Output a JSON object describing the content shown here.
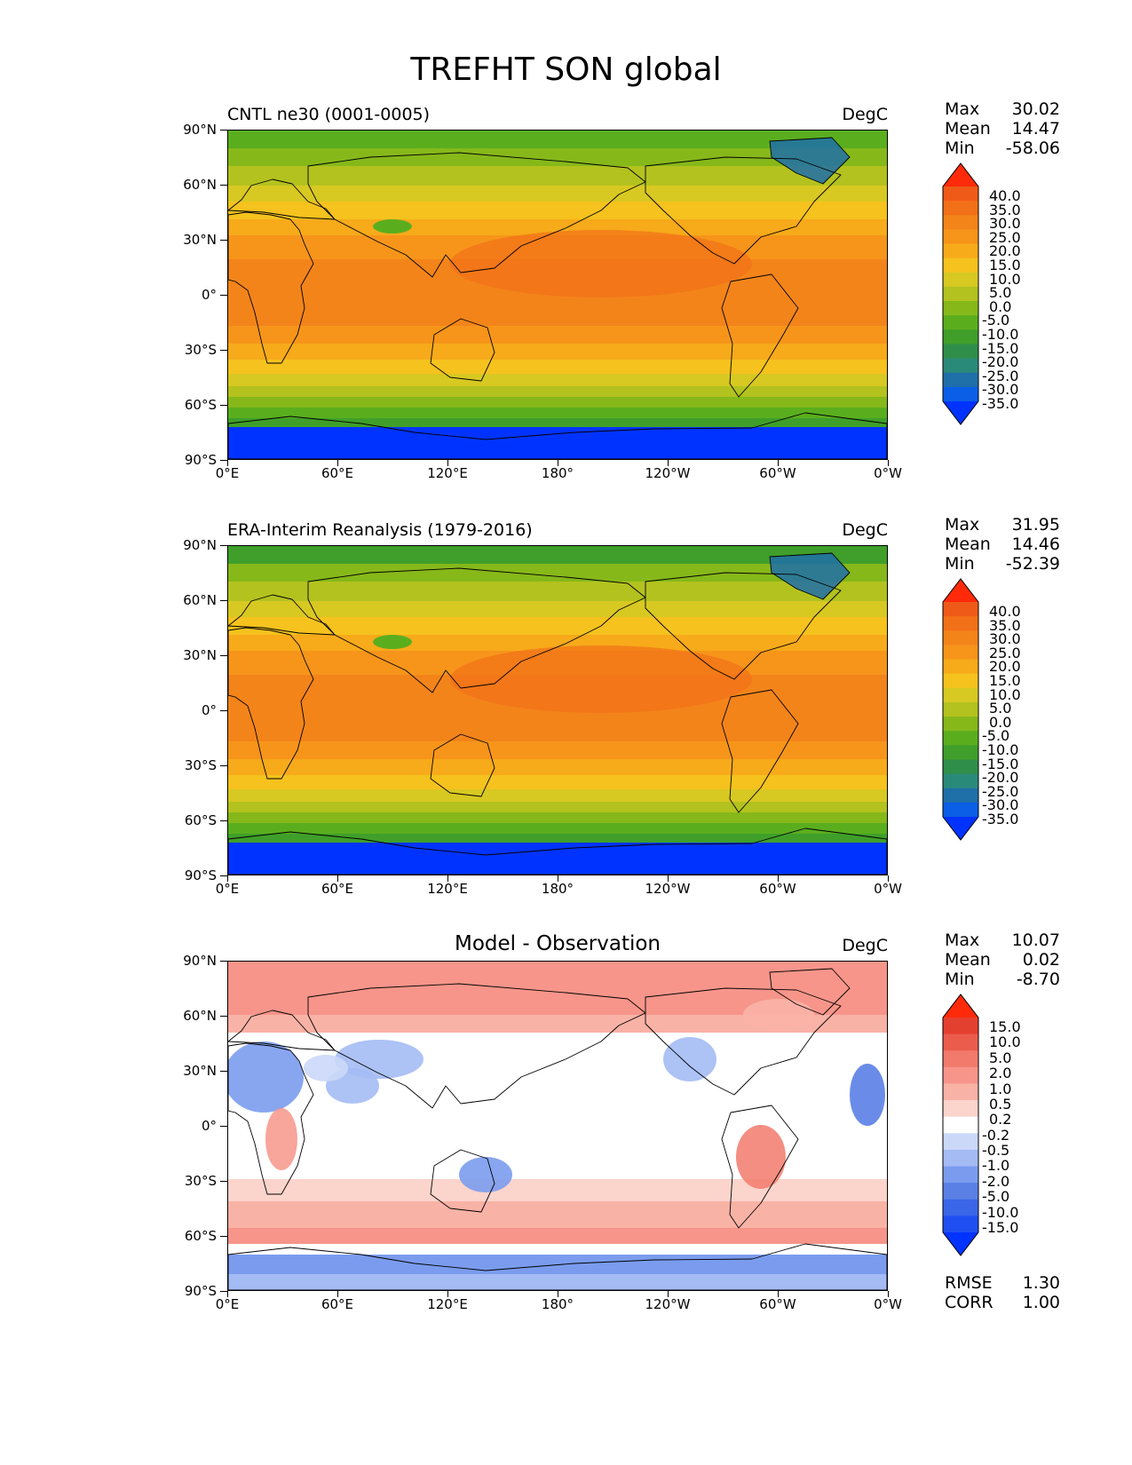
{
  "title": "TREFHT SON global",
  "axes": {
    "y_ticks": [
      "90°N",
      "60°N",
      "30°N",
      "0°",
      "30°S",
      "60°S",
      "90°S"
    ],
    "x_ticks": [
      "0°E",
      "60°E",
      "120°E",
      "180°",
      "120°W",
      "60°W",
      "0°W"
    ]
  },
  "panels": [
    {
      "title": "CNTL ne30 (0001-0005)",
      "units": "DegC",
      "stats": {
        "max_label": "Max",
        "max": "30.02",
        "mean_label": "Mean",
        "mean": "14.47",
        "min_label": "Min",
        "min": "-58.06"
      },
      "colorbar": [
        "40.0",
        "35.0",
        "30.0",
        "25.0",
        "20.0",
        "15.0",
        "10.0",
        "5.0",
        "0.0",
        "-5.0",
        "-10.0",
        "-15.0",
        "-20.0",
        "-25.0",
        "-30.0",
        "-35.0"
      ]
    },
    {
      "title": "ERA-Interim Reanalysis (1979-2016)",
      "units": "DegC",
      "stats": {
        "max_label": "Max",
        "max": "31.95",
        "mean_label": "Mean",
        "mean": "14.46",
        "min_label": "Min",
        "min": "-52.39"
      },
      "colorbar": [
        "40.0",
        "35.0",
        "30.0",
        "25.0",
        "20.0",
        "15.0",
        "10.0",
        "5.0",
        "0.0",
        "-5.0",
        "-10.0",
        "-15.0",
        "-20.0",
        "-25.0",
        "-30.0",
        "-35.0"
      ]
    },
    {
      "title": "Model - Observation",
      "units": "DegC",
      "stats": {
        "max_label": "Max",
        "max": "10.07",
        "mean_label": "Mean",
        "mean": "0.02",
        "min_label": "Min",
        "min": "-8.70"
      },
      "colorbar": [
        "15.0",
        "10.0",
        "5.0",
        "2.0",
        "1.0",
        "0.5",
        "0.2",
        "-0.2",
        "-0.5",
        "-1.0",
        "-2.0",
        "-5.0",
        "-10.0",
        "-15.0"
      ],
      "footer": {
        "rmse_label": "RMSE",
        "rmse": "1.30",
        "corr_label": "CORR",
        "corr": "1.00"
      }
    }
  ],
  "colors": {
    "abs_scale": [
      "#0033ff",
      "#0a5fe6",
      "#1f6fa8",
      "#2a8a7a",
      "#2f8f4a",
      "#3f9f2a",
      "#5aae1e",
      "#86b81a",
      "#b3c21e",
      "#d8c822",
      "#f5c21e",
      "#f7aa1a",
      "#f6951a",
      "#f3841a",
      "#f27018",
      "#f05a18",
      "#ff2a0a"
    ],
    "diff_scale": [
      "#0033ff",
      "#1f4ff0",
      "#3a66e8",
      "#5a80e6",
      "#7b9cee",
      "#a4bbf4",
      "#cbd8f8",
      "#ffffff",
      "#fbd4cc",
      "#f9b2a6",
      "#f7958a",
      "#f27a6c",
      "#ec5c4c",
      "#e44030",
      "#ff2a0a"
    ],
    "coast": "#000000"
  }
}
